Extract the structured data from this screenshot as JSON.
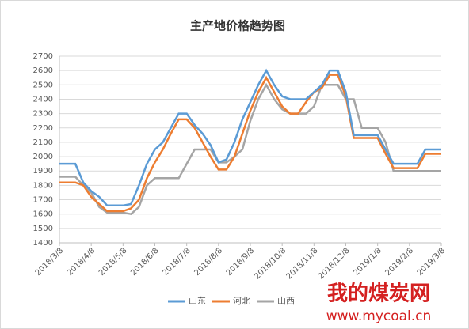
{
  "chart_data": {
    "type": "line",
    "title": "主产地价格趋势图",
    "categories": [
      "2018/3/8",
      null,
      null,
      null,
      "2018/4/8",
      null,
      null,
      null,
      "2018/5/8",
      null,
      null,
      null,
      "2018/6/8",
      null,
      null,
      null,
      "2018/7/8",
      null,
      null,
      null,
      "2018/8/8",
      null,
      null,
      null,
      "2018/9/8",
      null,
      null,
      null,
      "2018/10/8",
      null,
      null,
      null,
      "2018/11/8",
      null,
      null,
      null,
      "2018/12/8",
      null,
      null,
      null,
      "2019/1/8",
      null,
      null,
      null,
      "2019/2/8",
      null,
      null,
      null,
      "2019/3/8"
    ],
    "series": [
      {
        "name": "山东",
        "color": "#5b9bd5",
        "values": [
          1950,
          1950,
          1950,
          1820,
          1760,
          1720,
          1660,
          1660,
          1660,
          1670,
          1800,
          1950,
          2050,
          2100,
          2200,
          2300,
          2300,
          2220,
          2160,
          2080,
          1960,
          1980,
          2100,
          2260,
          2380,
          2500,
          2600,
          2500,
          2420,
          2400,
          2400,
          2400,
          2450,
          2500,
          2600,
          2600,
          2450,
          2150,
          2150,
          2150,
          2150,
          2050,
          1950,
          1950,
          1950,
          1950,
          2050,
          2050,
          2050
        ]
      },
      {
        "name": "河北",
        "color": "#ed7d31",
        "values": [
          1820,
          1820,
          1820,
          1800,
          1720,
          1670,
          1620,
          1620,
          1620,
          1640,
          1700,
          1850,
          1960,
          2050,
          2160,
          2260,
          2260,
          2200,
          2100,
          2000,
          1910,
          1910,
          2000,
          2160,
          2320,
          2450,
          2550,
          2450,
          2350,
          2300,
          2300,
          2380,
          2450,
          2480,
          2570,
          2570,
          2420,
          2130,
          2130,
          2130,
          2130,
          2020,
          1920,
          1920,
          1920,
          1920,
          2020,
          2020,
          2020
        ]
      },
      {
        "name": "山西",
        "color": "#a5a5a5",
        "values": [
          1860,
          1860,
          1860,
          1800,
          1750,
          1650,
          1610,
          1610,
          1610,
          1600,
          1650,
          1800,
          1850,
          1850,
          1850,
          1850,
          1950,
          2050,
          2050,
          2050,
          1960,
          1960,
          2000,
          2050,
          2250,
          2400,
          2500,
          2400,
          2330,
          2300,
          2300,
          2300,
          2350,
          2500,
          2500,
          2500,
          2400,
          2400,
          2200,
          2200,
          2200,
          2100,
          1900,
          1900,
          1900,
          1900,
          1900,
          1900,
          1900
        ]
      }
    ],
    "ylim": [
      1400,
      2700
    ],
    "yticks": [
      1400,
      1500,
      1600,
      1700,
      1800,
      1900,
      2000,
      2100,
      2200,
      2300,
      2400,
      2500,
      2600,
      2700
    ],
    "grid": true,
    "legend": "bottom"
  },
  "watermark": {
    "name": "我的煤炭网",
    "url": "www.mycoal.cn"
  }
}
